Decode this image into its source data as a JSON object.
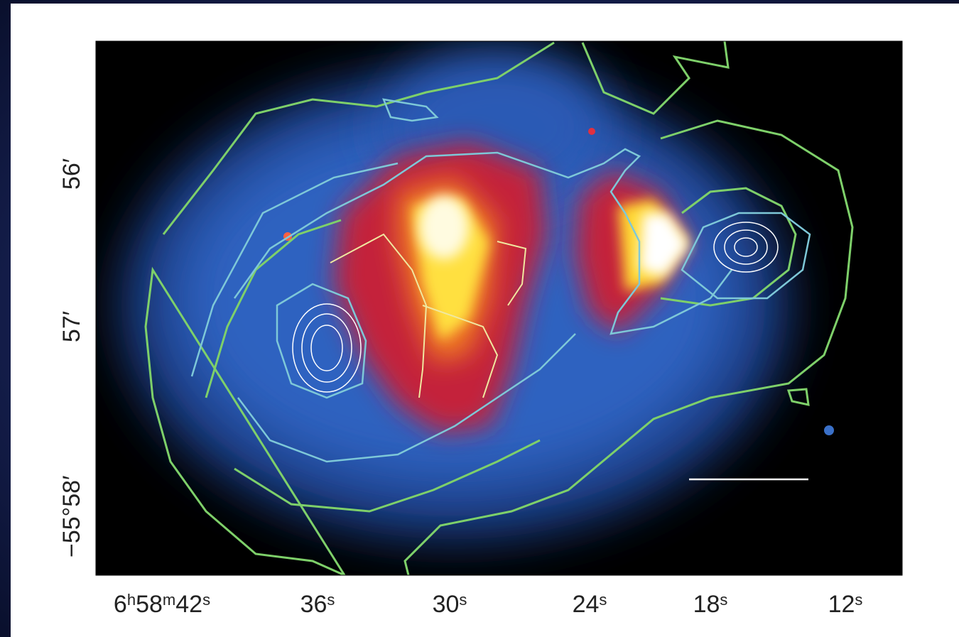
{
  "x_axis": {
    "tick_labels": [
      "6h58m42s",
      "36s",
      "30s",
      "24s",
      "18s",
      "12s"
    ]
  },
  "y_axis": {
    "tick_labels": [
      "56′",
      "57′",
      "−55°58′"
    ]
  }
}
